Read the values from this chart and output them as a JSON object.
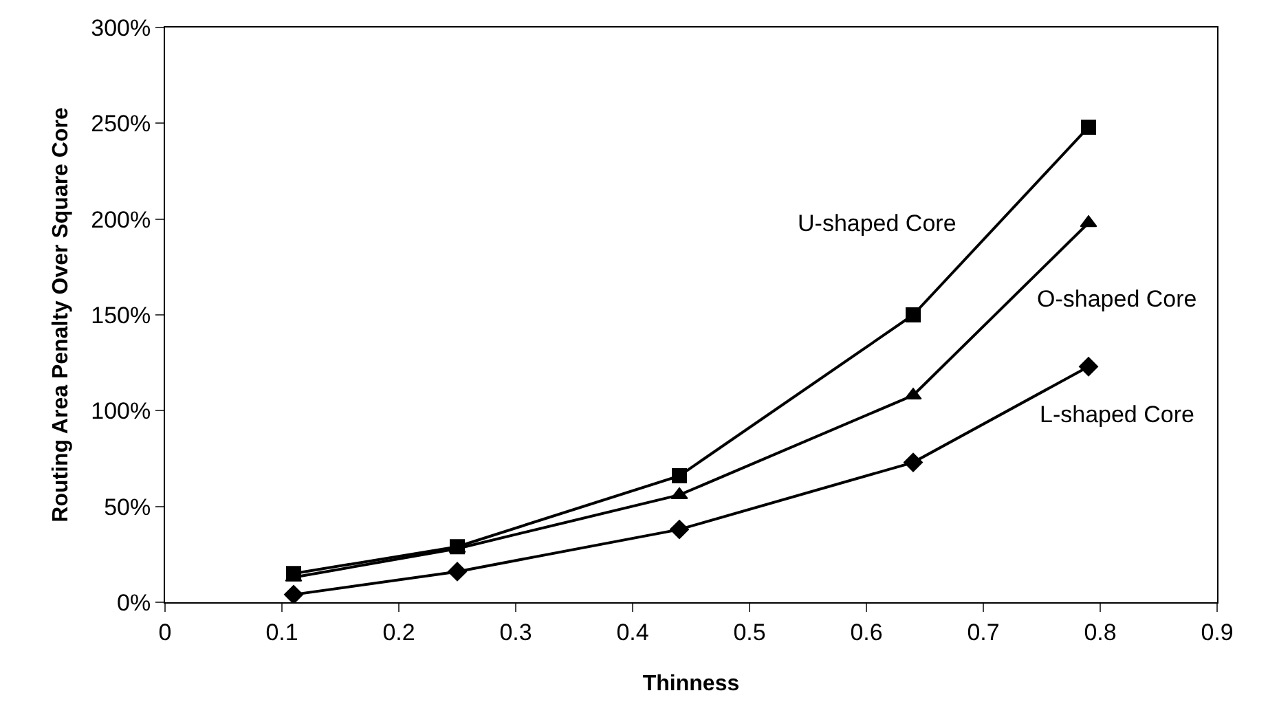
{
  "chart_data": {
    "type": "line",
    "xlabel": "Thinness",
    "ylabel": "Routing Area Penalty Over Square Core",
    "x": [
      0.11,
      0.25,
      0.44,
      0.64,
      0.79
    ],
    "series": [
      {
        "name": "U-shaped Core",
        "color": "#000000",
        "marker": "square",
        "values": [
          15,
          29,
          66,
          150,
          248
        ]
      },
      {
        "name": "O-shaped Core",
        "color": "#000000",
        "marker": "triangle",
        "values": [
          13,
          28,
          56,
          108,
          198
        ]
      },
      {
        "name": "L-shaped Core",
        "color": "#000000",
        "marker": "diamond",
        "values": [
          4,
          16,
          38,
          73,
          123
        ]
      }
    ],
    "xlim": [
      0,
      0.9
    ],
    "xticks": [
      0,
      0.1,
      0.2,
      0.3,
      0.4,
      0.5,
      0.6,
      0.7,
      0.8,
      0.9
    ],
    "ylim": [
      0,
      300
    ],
    "yticks": [
      {
        "value": 0,
        "label": "0%"
      },
      {
        "value": 50,
        "label": "50%"
      },
      {
        "value": 100,
        "label": "100%"
      },
      {
        "value": 150,
        "label": "150%"
      },
      {
        "value": 200,
        "label": "200%"
      },
      {
        "value": 250,
        "label": "250%"
      },
      {
        "value": 300,
        "label": "300%"
      }
    ],
    "grid": false,
    "legend": false,
    "line_style": "solid"
  }
}
